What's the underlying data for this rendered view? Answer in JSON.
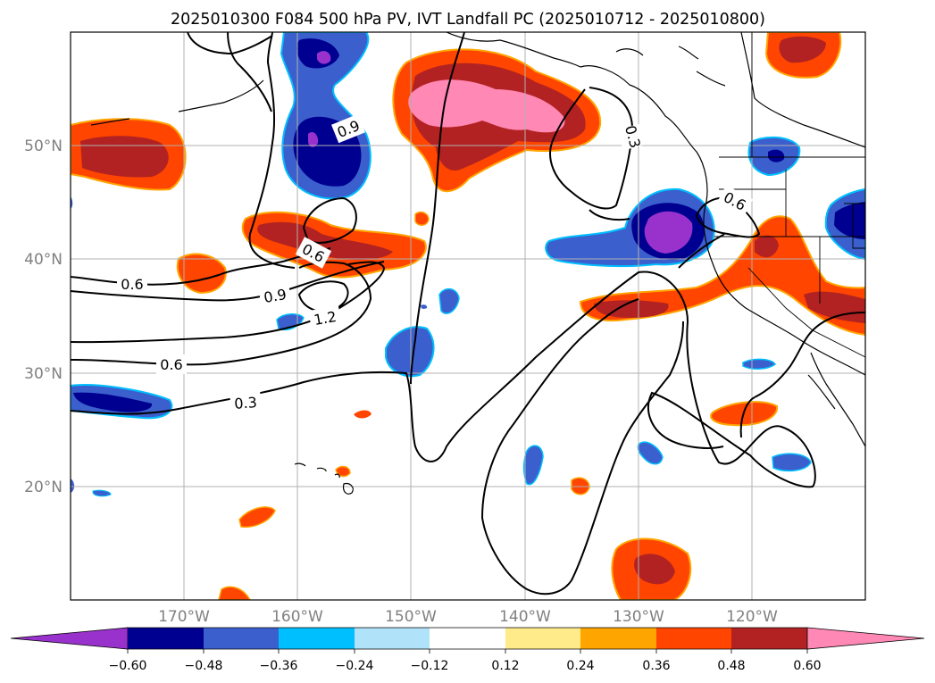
{
  "title": "2025010300 F084 500 hPa PV, IVT Landfall PC (2025010712 - 2025010800)",
  "lat_labels": [
    "50°N",
    "40°N",
    "30°N",
    "20°N"
  ],
  "lon_labels": [
    "170°W",
    "160°W",
    "150°W",
    "140°W",
    "130°W",
    "120°W"
  ],
  "contour_labels": [
    "0.9",
    "0.3",
    "0.6",
    "0.6",
    "0.6",
    "0.9",
    "1.2",
    "0.6",
    "0.3"
  ],
  "colorbar": {
    "ticks": [
      "−0.60",
      "−0.48",
      "−0.36",
      "−0.24",
      "−0.12",
      "0.12",
      "0.24",
      "0.36",
      "0.48",
      "0.60"
    ],
    "colors": [
      "#9932cc",
      "#000090",
      "#3b5fcc",
      "#00bfff",
      "#b0e2fa",
      "#ffffff",
      "#ffeb8a",
      "#ffa500",
      "#ff4500",
      "#b22222",
      "#ff88b5"
    ]
  }
}
